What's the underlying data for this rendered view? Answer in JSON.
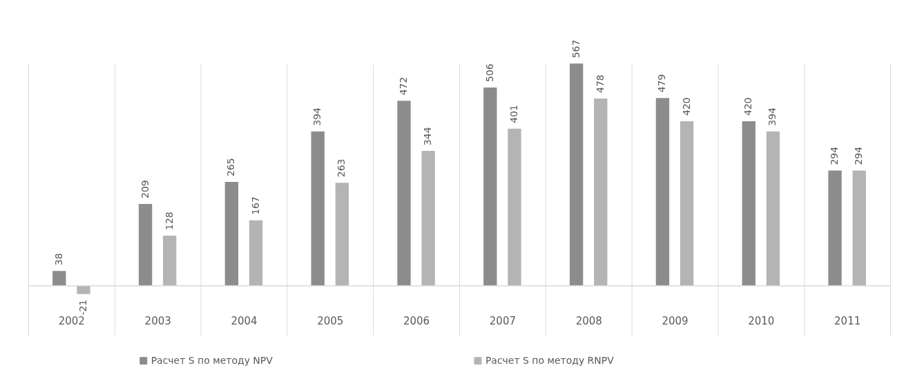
{
  "chart_data": {
    "type": "bar",
    "categories": [
      "2002",
      "2003",
      "2004",
      "2005",
      "2006",
      "2007",
      "2008",
      "2009",
      "2010",
      "2011"
    ],
    "series": [
      {
        "name": "Расчет S по методу NPV",
        "color": "#8c8c8c",
        "values": [
          38,
          209,
          265,
          394,
          472,
          506,
          567,
          479,
          420,
          294
        ]
      },
      {
        "name": "Расчет S по методу RNPV",
        "color": "#b4b4b4",
        "values": [
          -21,
          128,
          167,
          263,
          344,
          401,
          478,
          420,
          394,
          294
        ]
      }
    ],
    "data_labels": true,
    "grid": "x",
    "legend": "bottom"
  }
}
